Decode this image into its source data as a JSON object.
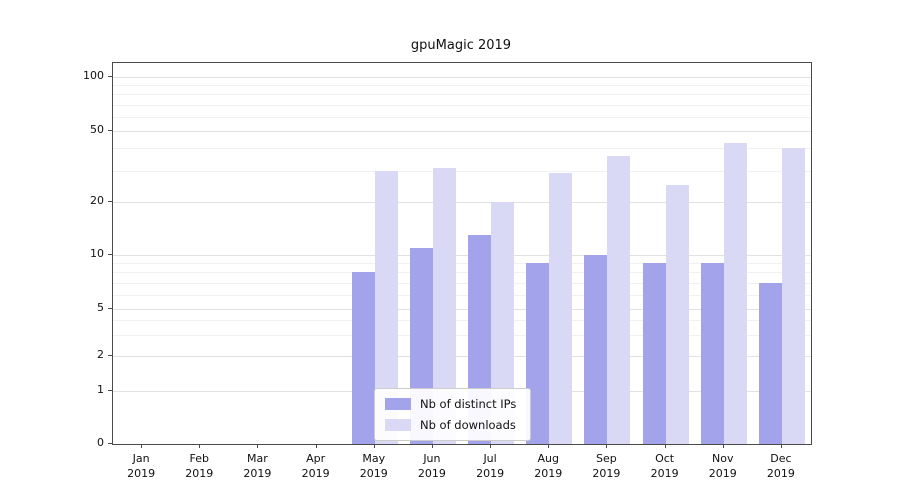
{
  "chart_data": {
    "type": "bar",
    "title": "gpuMagic 2019",
    "categories": [
      "Jan 2019",
      "Feb 2019",
      "Mar 2019",
      "Apr 2019",
      "May 2019",
      "Jun 2019",
      "Jul 2019",
      "Aug 2019",
      "Sep 2019",
      "Oct 2019",
      "Nov 2019",
      "Dec 2019"
    ],
    "series": [
      {
        "name": "Nb of distinct IPs",
        "color": "#a3a3ec",
        "values": [
          0,
          0,
          0,
          0,
          8,
          11,
          13,
          9,
          10,
          9,
          9,
          7
        ]
      },
      {
        "name": "Nb of downloads",
        "color": "#d9d9f6",
        "values": [
          0,
          0,
          0,
          0,
          30,
          31,
          20,
          29,
          36,
          25,
          43,
          40
        ]
      }
    ],
    "yscale": "symlog",
    "yticks": [
      0,
      1,
      2,
      5,
      10,
      20,
      50,
      100
    ],
    "yminorticks": [
      3,
      4,
      6,
      7,
      8,
      9,
      30,
      40,
      60,
      70,
      80,
      90
    ],
    "ylim": [
      0,
      110
    ],
    "xlabel": "",
    "ylabel": "",
    "grid": "horizontal",
    "legend_position": "lower center inside plot"
  }
}
